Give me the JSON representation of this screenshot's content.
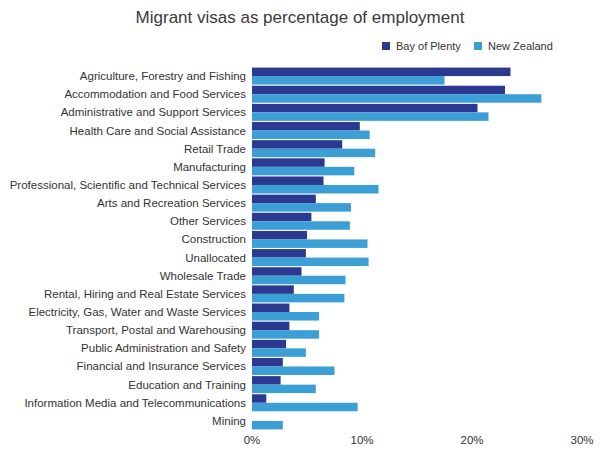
{
  "chart_data": {
    "type": "bar",
    "orientation": "horizontal",
    "title": "Migrant visas as percentage of employment",
    "categories": [
      "Agriculture, Forestry and Fishing",
      "Accommodation and Food Services",
      "Administrative and Support Services",
      "Health Care and Social Assistance",
      "Retail Trade",
      "Manufacturing",
      "Professional, Scientific and Technical Services",
      "Arts and Recreation Services",
      "Other Services",
      "Construction",
      "Unallocated",
      "Wholesale Trade",
      "Rental, Hiring and Real Estate Services",
      "Electricity, Gas, Water and Waste Services",
      "Transport, Postal and Warehousing",
      "Public Administration and Safety",
      "Financial and Insurance Services",
      "Education and Training",
      "Information Media and Telecommunications",
      "Mining"
    ],
    "series": [
      {
        "name": "Bay of Plenty",
        "color": "#2b3990",
        "values": [
          23.5,
          23.0,
          20.5,
          9.8,
          8.2,
          6.6,
          6.5,
          5.8,
          5.4,
          5.0,
          4.9,
          4.5,
          3.8,
          3.4,
          3.4,
          3.1,
          2.8,
          2.6,
          1.3,
          0
        ]
      },
      {
        "name": "New Zealand",
        "color": "#3b9fd6",
        "values": [
          17.5,
          26.3,
          21.5,
          10.7,
          11.2,
          9.3,
          11.5,
          9.0,
          8.9,
          10.5,
          10.6,
          8.5,
          8.4,
          6.1,
          6.1,
          4.9,
          7.5,
          5.8,
          9.6,
          2.8
        ]
      }
    ],
    "xlim": [
      0,
      30
    ],
    "xticks": [
      {
        "value": 0,
        "label": "0%"
      },
      {
        "value": 10,
        "label": "10%"
      },
      {
        "value": 20,
        "label": "20%"
      },
      {
        "value": 30,
        "label": "30%"
      }
    ],
    "grid": false,
    "legend": "top"
  }
}
